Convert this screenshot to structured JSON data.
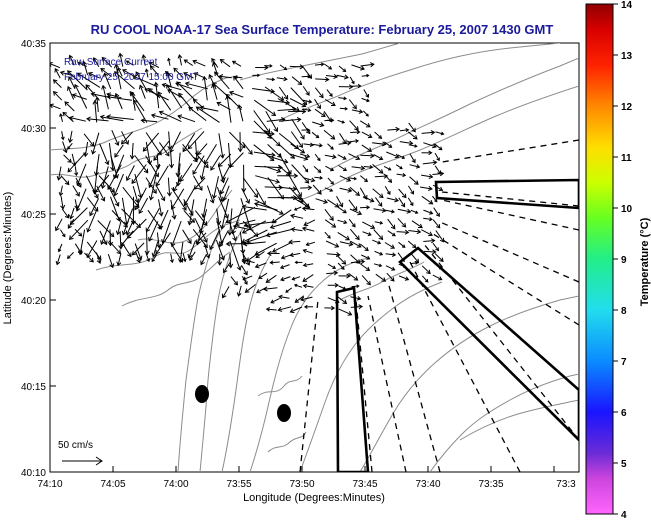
{
  "title": "RU COOL  NOAA-17  Sea Surface Temperature:  February 25, 2007 1430 GMT",
  "overlay": {
    "line1": "Raw Surface Current",
    "line2": "February 25, 2007 15:00 GMT"
  },
  "axes": {
    "xlabel": "Longitude (Degrees:Minutes)",
    "ylabel": "Latitude (Degrees:Minutes)",
    "x_ticks": [
      "74:10",
      "74:05",
      "74:00",
      "73:55",
      "73:50",
      "73:45",
      "73:40",
      "73:35",
      "73:3"
    ],
    "y_ticks": [
      "40:35",
      "40:30",
      "40:25",
      "40:20",
      "40:15",
      "40:10"
    ]
  },
  "scale_label": "50 cm/s",
  "colorbar": {
    "label": "Temperature (°C)",
    "ticks": [
      "14",
      "13",
      "12",
      "11",
      "10",
      "9",
      "8",
      "7",
      "6",
      "5",
      "4"
    ],
    "min": 4,
    "max": 14
  },
  "colors": {
    "title": "#1a1a9a",
    "overlay_text": "#1a1a9a",
    "coast": "#8c8c8c",
    "vector": "#000000"
  }
}
